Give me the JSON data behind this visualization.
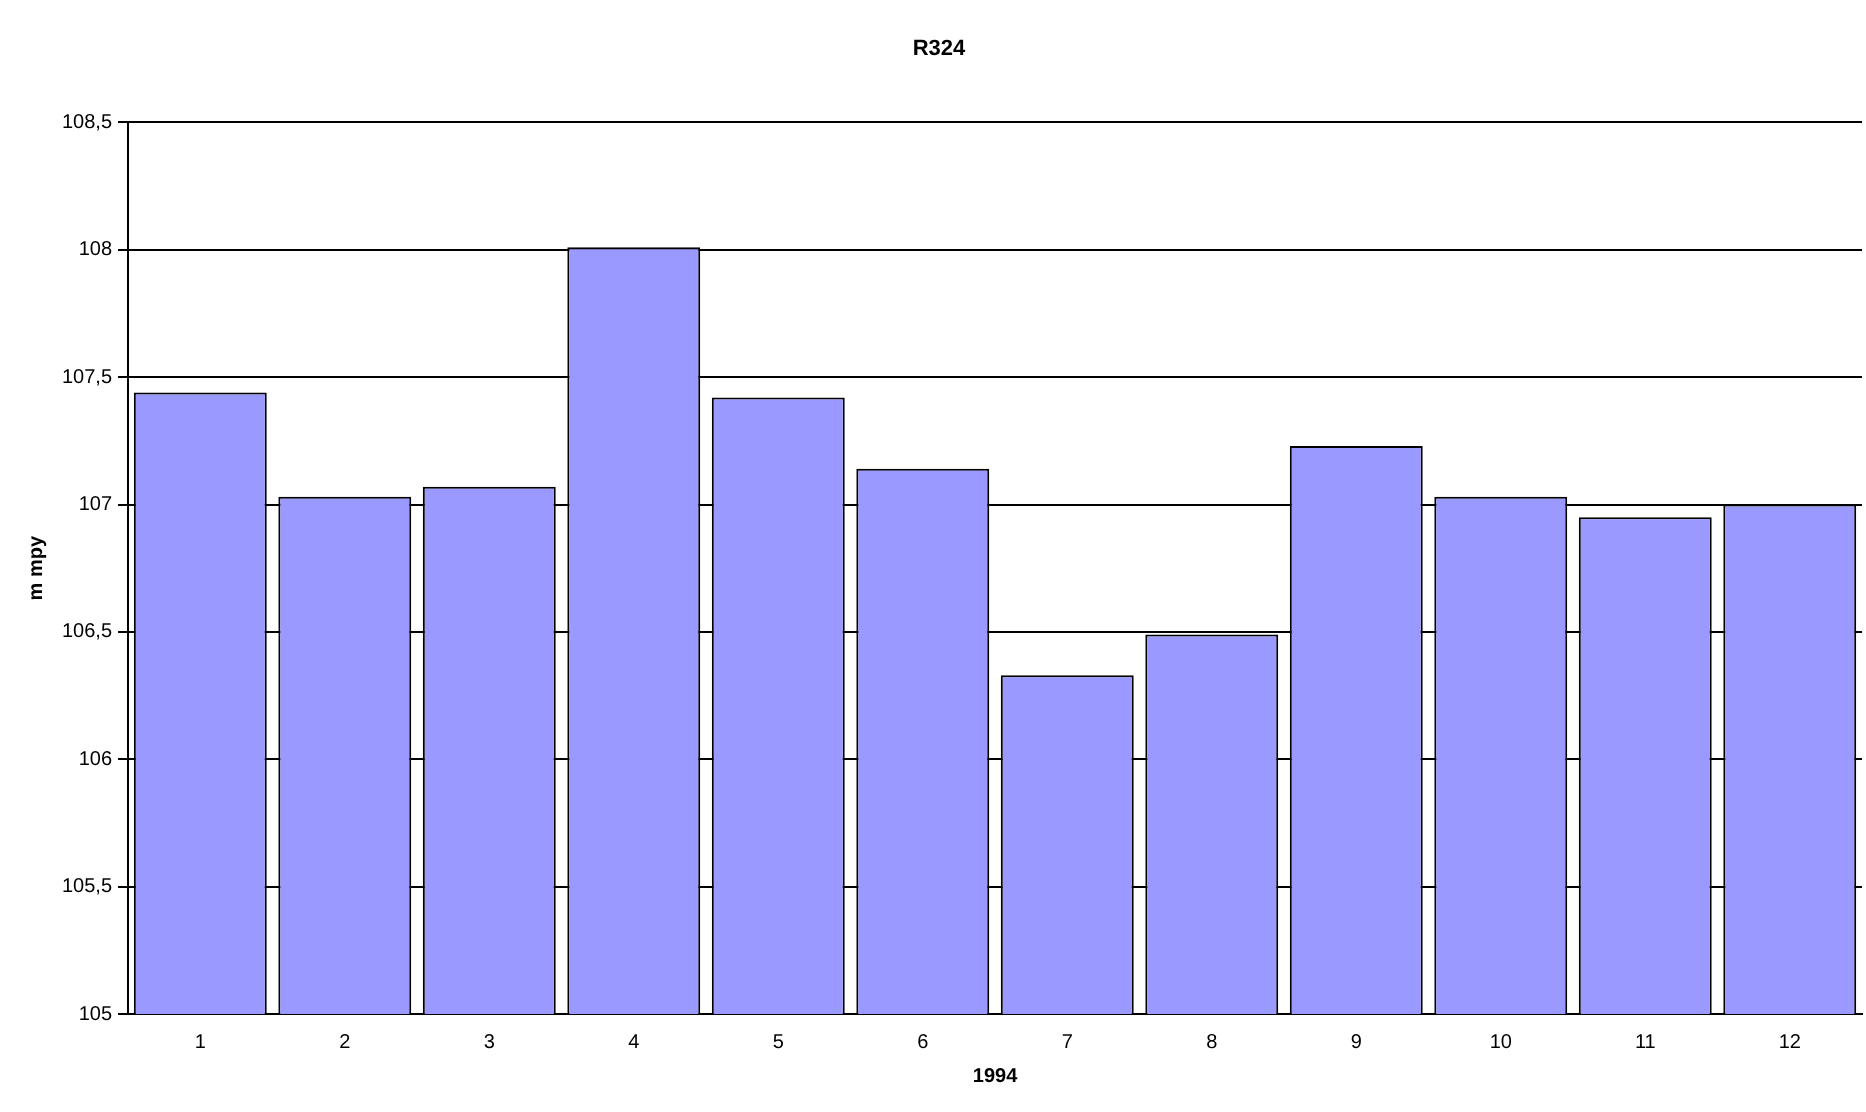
{
  "chart_data": {
    "type": "bar",
    "title": "R324",
    "xlabel": "1994",
    "ylabel": "m mpy",
    "categories": [
      "1",
      "2",
      "3",
      "4",
      "5",
      "6",
      "7",
      "8",
      "9",
      "10",
      "11",
      "12"
    ],
    "values": [
      107.44,
      107.03,
      107.07,
      108.01,
      107.42,
      107.14,
      106.33,
      106.49,
      107.23,
      107.03,
      106.95,
      107.0
    ],
    "color": "#9999ff",
    "ylim": [
      105,
      108.5
    ],
    "yticks": [
      105,
      {
        "value": 105.5,
        "label": "105,5"
      },
      106,
      {
        "value": 106.5,
        "label": "106,5"
      },
      107,
      {
        "value": 107.5,
        "label": "107,5"
      },
      108,
      {
        "value": 108.5,
        "label": "108,5"
      }
    ],
    "grid": "y",
    "legend": false
  }
}
